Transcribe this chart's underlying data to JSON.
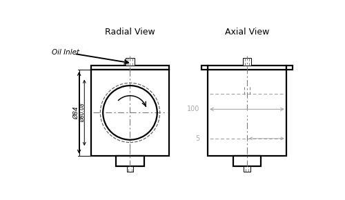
{
  "bg_color": "#ffffff",
  "line_color": "#000000",
  "dim_color": "#aaaaaa",
  "dashed_color": "#666666",
  "title_radial": "Radial View",
  "title_axial": "Axial View",
  "label_oil": "Oil Inlet",
  "label_d84": "Ø84",
  "label_d8008": "Ø80.08",
  "label_100": "100",
  "label_5": "5"
}
